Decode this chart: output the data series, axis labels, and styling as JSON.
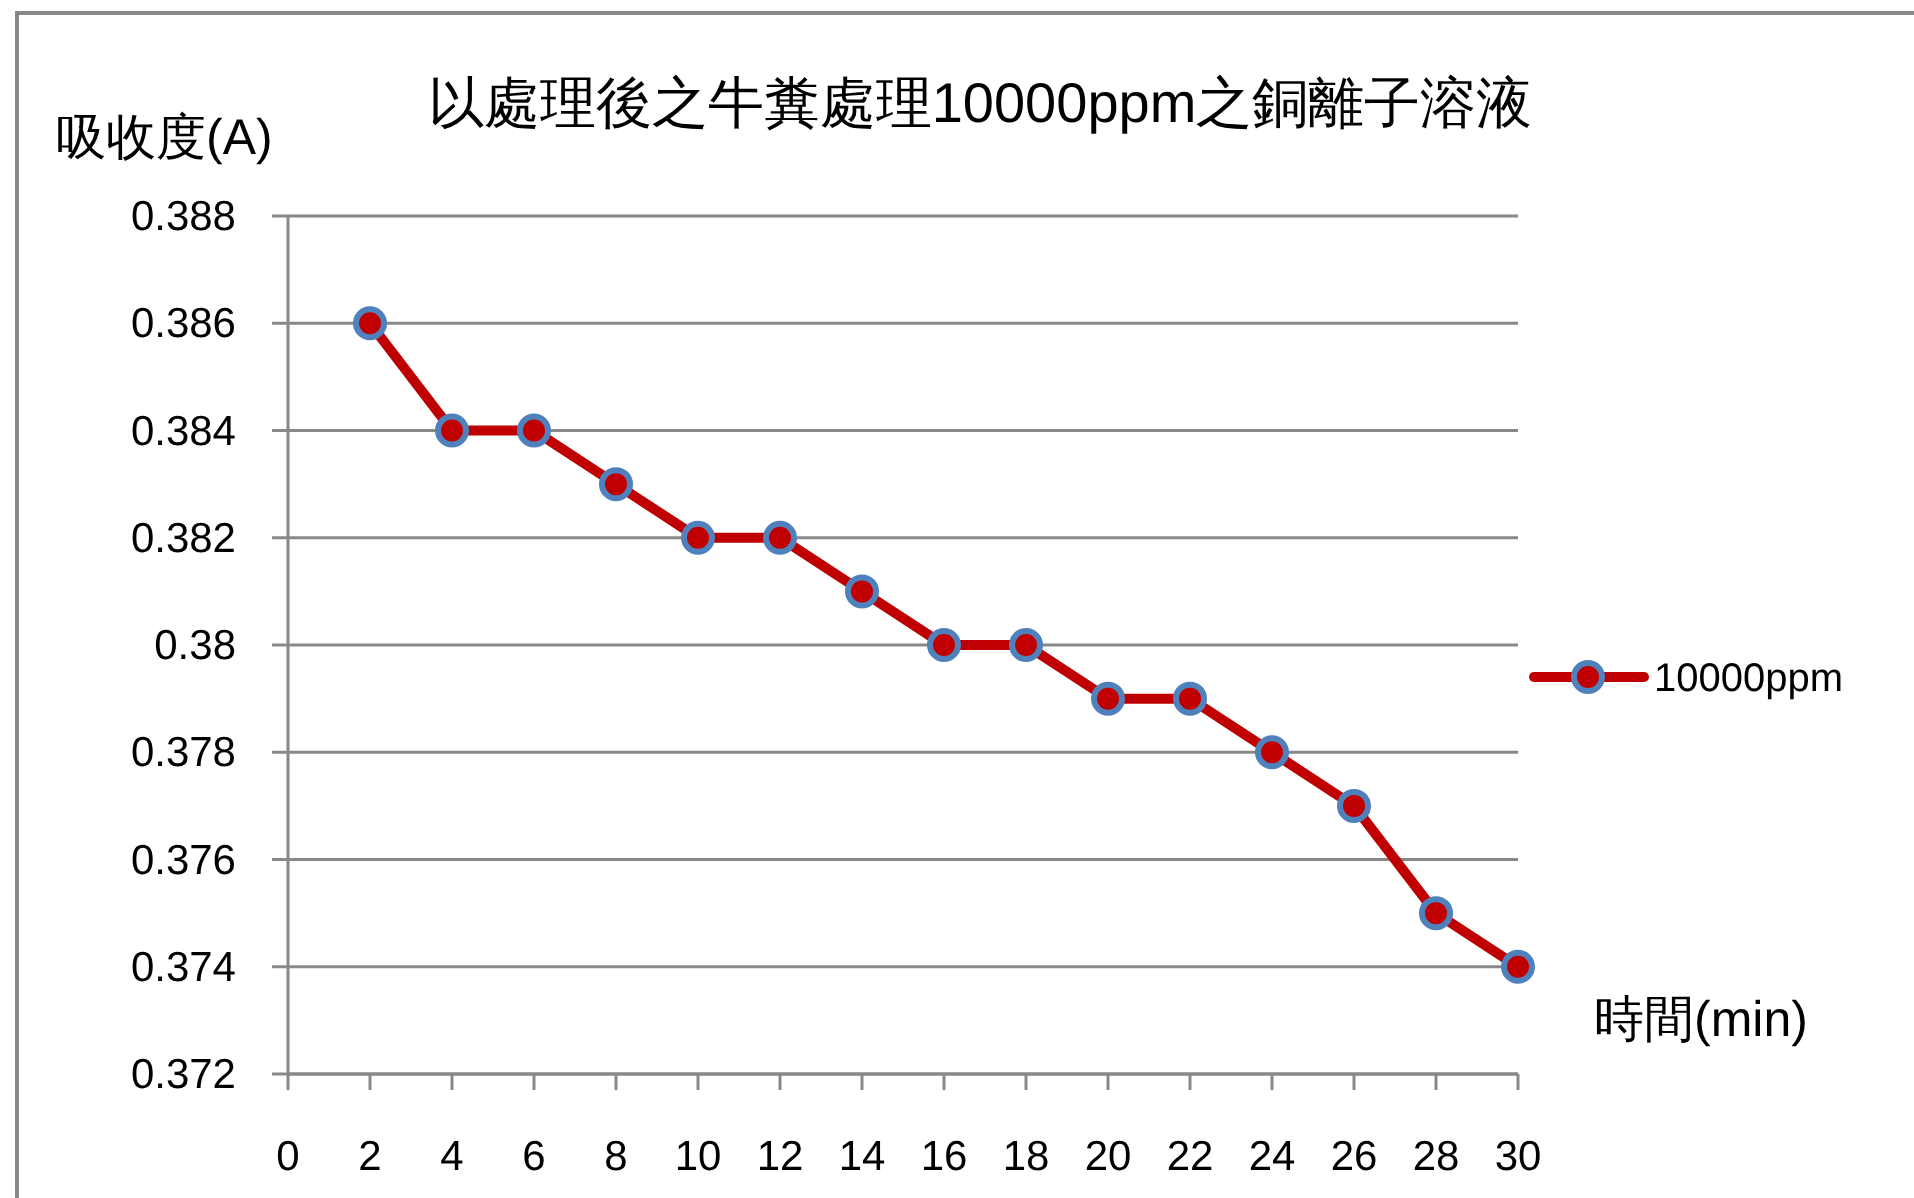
{
  "chart_data": {
    "type": "line",
    "title": "以處理後之牛糞處理10000ppm之銅離子溶液",
    "xlabel": "時間(min)",
    "ylabel": "吸收度(A)",
    "x": [
      2,
      4,
      6,
      8,
      10,
      12,
      14,
      16,
      18,
      20,
      22,
      24,
      26,
      28,
      30
    ],
    "series": [
      {
        "name": "10000ppm",
        "color": "#c00000",
        "values": [
          0.386,
          0.384,
          0.384,
          0.383,
          0.382,
          0.382,
          0.381,
          0.38,
          0.38,
          0.379,
          0.379,
          0.378,
          0.377,
          0.375,
          0.374
        ]
      }
    ],
    "xlim": [
      0,
      30
    ],
    "xticks": [
      0,
      2,
      4,
      6,
      8,
      10,
      12,
      14,
      16,
      18,
      20,
      22,
      24,
      26,
      28,
      30
    ],
    "ylim": [
      0.372,
      0.388
    ],
    "yticks": [
      0.372,
      0.374,
      0.376,
      0.378,
      0.38,
      0.382,
      0.384,
      0.386,
      0.388
    ],
    "grid": "y",
    "legend": "right",
    "marker": "circle",
    "line_style": "solid"
  }
}
